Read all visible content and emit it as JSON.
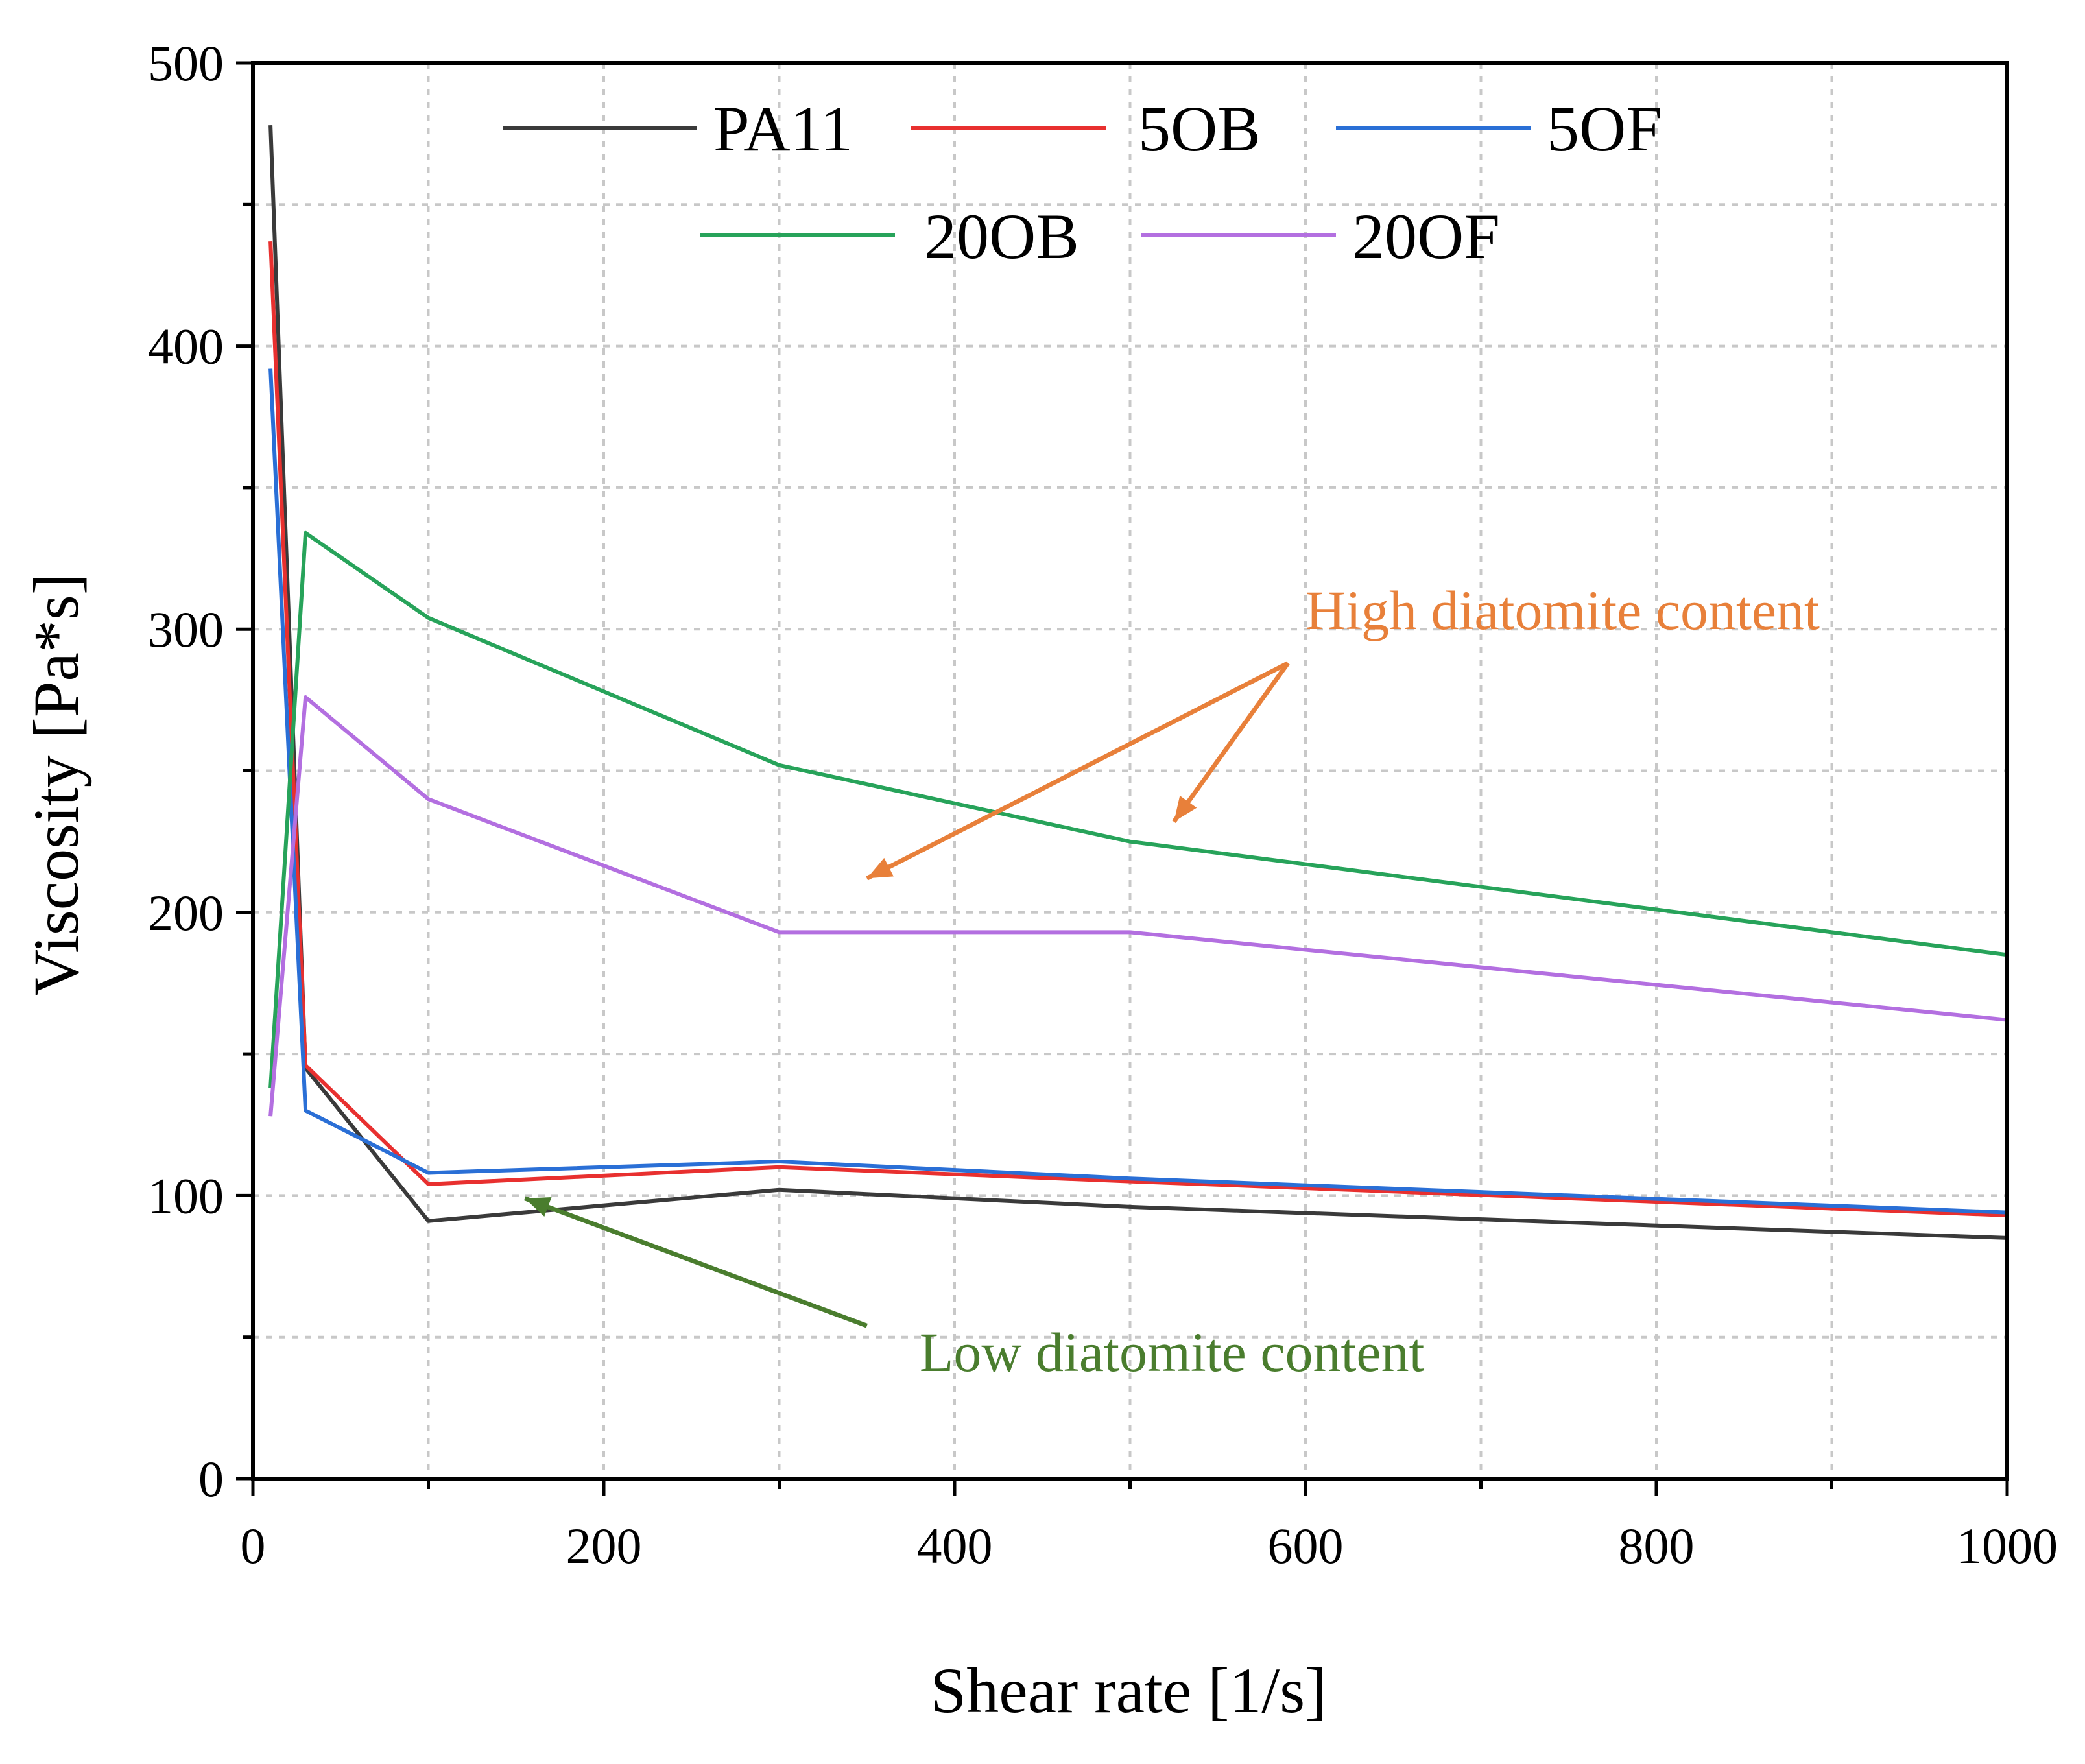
{
  "chart_data": {
    "type": "line",
    "title": "",
    "xlabel": "Shear rate [1/s]",
    "ylabel": "Viscosity [Pa*s]",
    "xlim": [
      0,
      1000
    ],
    "ylim": [
      0,
      500
    ],
    "xticks": [
      0,
      200,
      400,
      600,
      800,
      1000
    ],
    "yticks": [
      0,
      100,
      200,
      300,
      400,
      500
    ],
    "x_minor_step": 100,
    "y_minor_step": 50,
    "grid": true,
    "legend_position": "top",
    "x": [
      10,
      30,
      100,
      300,
      500,
      1000
    ],
    "series": [
      {
        "name": "PA11",
        "color": "#3a3a3a",
        "values": [
          478,
          145,
          91,
          102,
          96,
          85
        ]
      },
      {
        "name": "5OB",
        "color": "#e8302f",
        "values": [
          437,
          146,
          104,
          110,
          105,
          93
        ]
      },
      {
        "name": "5OF",
        "color": "#2a6fd6",
        "values": [
          392,
          130,
          108,
          112,
          106,
          94
        ]
      },
      {
        "name": "20OB",
        "color": "#27a35a",
        "values": [
          138,
          334,
          304,
          252,
          225,
          185
        ]
      },
      {
        "name": "20OF",
        "color": "#b36fe0",
        "values": [
          128,
          276,
          240,
          193,
          193,
          162
        ]
      }
    ],
    "annotations": [
      {
        "text": "High diatomite content",
        "color": "#e8803a",
        "anchor": [
          600,
          300
        ],
        "arrow_origin": [
          590,
          288
        ],
        "arrow_targets": [
          [
            350,
            212
          ],
          [
            525,
            232
          ]
        ]
      },
      {
        "text": "Low diatomite content",
        "color": "#4a7d2e",
        "anchor": [
          380,
          38
        ],
        "arrow_origin": [
          350,
          54
        ],
        "arrow_targets": [
          [
            155,
            99
          ]
        ]
      }
    ]
  }
}
